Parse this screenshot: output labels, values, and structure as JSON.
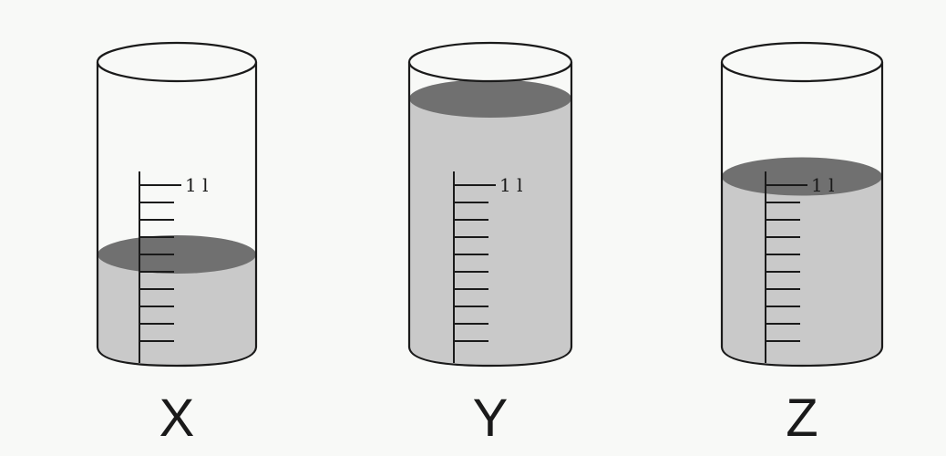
{
  "figure": {
    "description_free": true,
    "colors": {
      "background": "#f8f9f7",
      "outline": "#1a1a1a",
      "water_body": "#c9c9c9",
      "water_surface": "#707070",
      "glass_top": "#f8f9f7"
    },
    "beakers": [
      {
        "label": "X",
        "scale_label": "1 l",
        "capacity_marks": 10,
        "water_level_litres": 0.6
      },
      {
        "label": "Y",
        "scale_label": "1 l",
        "capacity_marks": 10,
        "water_level_litres": 1.5
      },
      {
        "label": "Z",
        "scale_label": "1 l",
        "capacity_marks": 10,
        "water_level_litres": 1.05
      }
    ]
  }
}
